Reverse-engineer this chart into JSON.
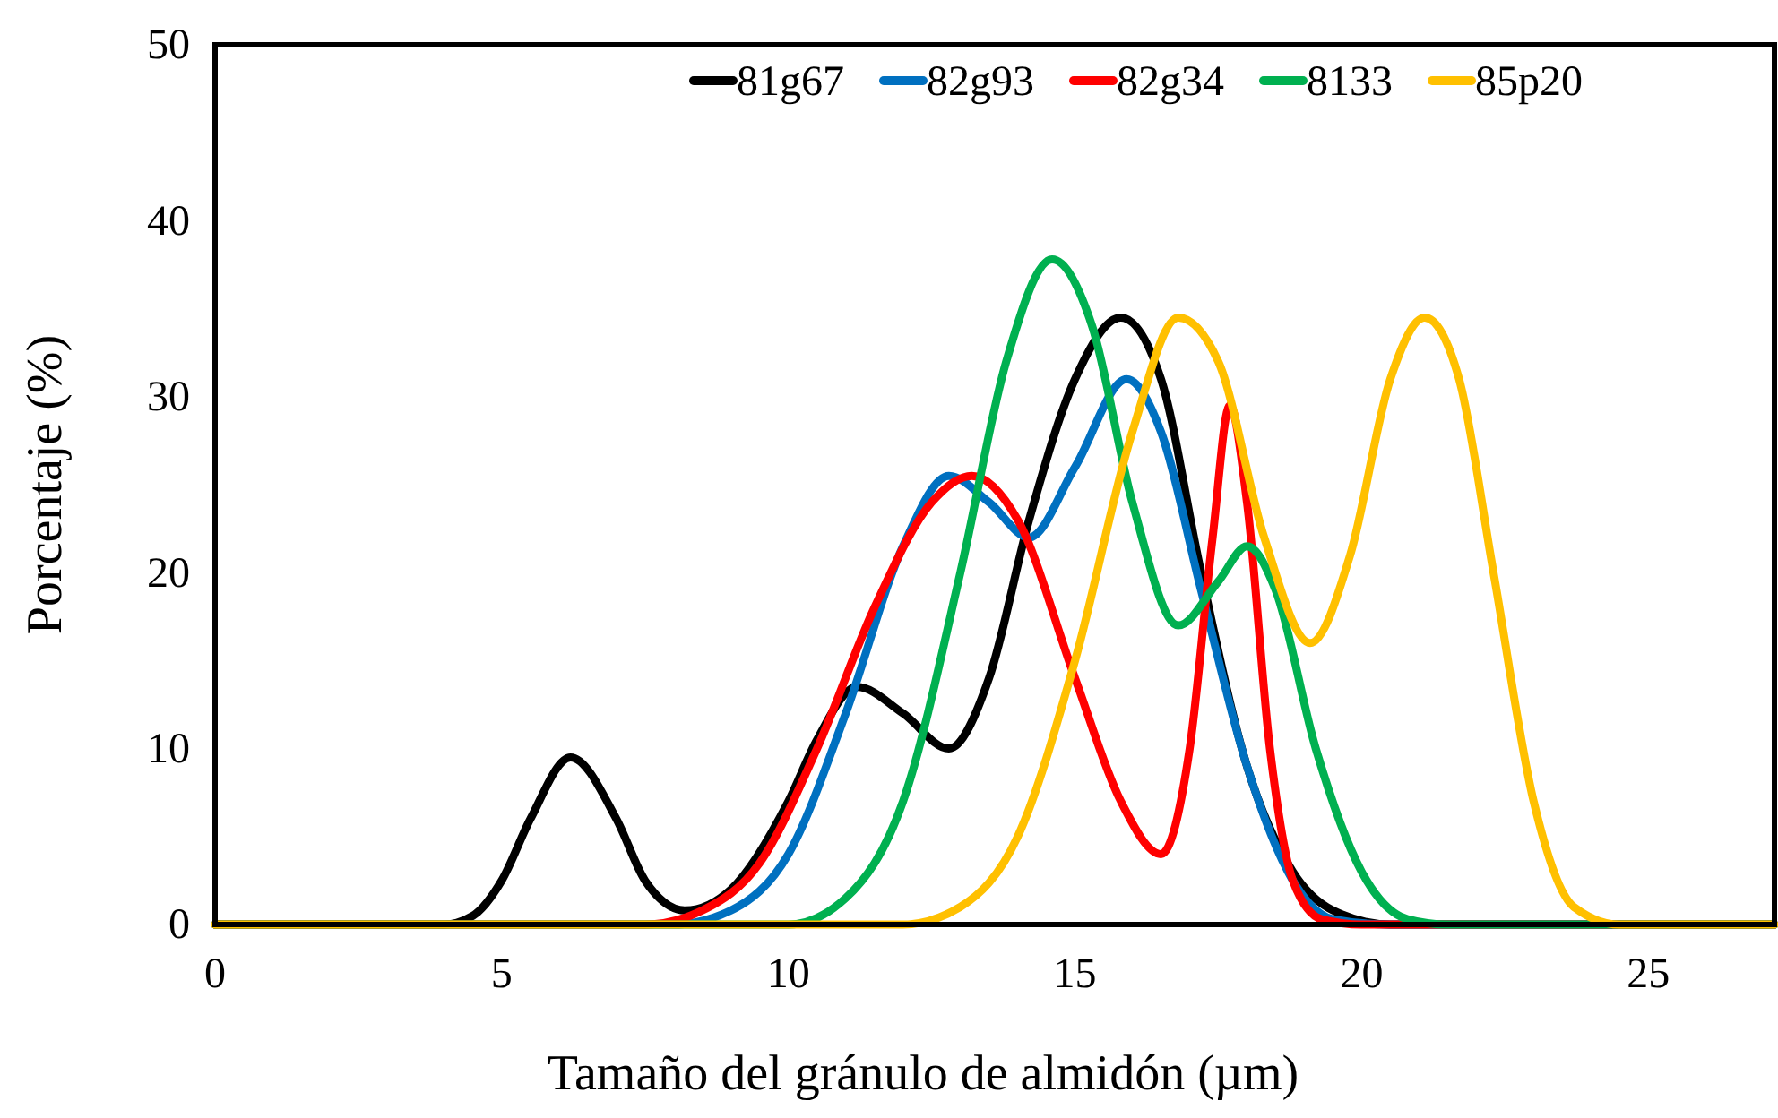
{
  "chart_data": {
    "type": "line",
    "xlabel": "Tamaño del gránulo de almidón (µm)",
    "ylabel": "Porcentaje (%)",
    "xlim": [
      0,
      27.2
    ],
    "xticks": [
      0,
      5,
      10,
      15,
      20,
      25
    ],
    "ylim": [
      0,
      50
    ],
    "yticks": [
      0,
      10,
      20,
      30,
      40,
      50
    ],
    "grid": false,
    "legend": "top",
    "marker": "none",
    "line_style": "solid",
    "series": [
      {
        "name": "81g67",
        "color": "#000000",
        "x": [
          0,
          4,
          4.5,
          5,
          5.5,
          6.2,
          7,
          7.5,
          8.2,
          9,
          10,
          10.5,
          11.2,
          12,
          12.8,
          13.5,
          14.2,
          15,
          15.8,
          16.5,
          17.2,
          18,
          18.8,
          19.5,
          20.5,
          27.2
        ],
        "values": [
          0,
          0,
          0.5,
          2.5,
          6,
          9.5,
          6,
          2.5,
          0.8,
          2,
          7,
          10.5,
          13.5,
          12,
          10,
          14,
          23,
          31,
          34.5,
          31,
          20,
          9,
          3,
          0.8,
          0,
          0
        ]
      },
      {
        "name": "82g93",
        "color": "#0070c0",
        "x": [
          0,
          8,
          9,
          10,
          11,
          12,
          12.8,
          13.5,
          14.2,
          15,
          15.9,
          16.5,
          17.2,
          18,
          18.8,
          19.5,
          20.5,
          27.2
        ],
        "values": [
          0,
          0,
          0.8,
          4,
          12,
          21.5,
          25.5,
          24,
          22,
          26,
          31,
          28,
          19,
          9,
          2.5,
          0.3,
          0,
          0
        ]
      },
      {
        "name": "82g34",
        "color": "#ff0000",
        "x": [
          0,
          7.5,
          8.5,
          9.5,
          10.5,
          11.5,
          12.5,
          13.2,
          14,
          15,
          15.8,
          16.5,
          17,
          17.4,
          17.7,
          18,
          18.4,
          18.8,
          19.3,
          20,
          27.2
        ],
        "values": [
          0,
          0,
          0.8,
          3.5,
          10,
          18,
          24,
          25.5,
          23,
          14,
          7,
          4,
          10,
          22,
          29.5,
          24,
          10,
          2.5,
          0.3,
          0,
          0
        ]
      },
      {
        "name": "8133",
        "color": "#00b050",
        "x": [
          0,
          10,
          11,
          12,
          13,
          13.8,
          14.6,
          15.3,
          16,
          16.8,
          17.5,
          18,
          18.5,
          19.2,
          20,
          20.8,
          21.5,
          27.2
        ],
        "values": [
          0,
          0,
          1.5,
          7,
          20,
          32,
          37.8,
          34,
          24,
          17,
          19.5,
          21.5,
          19,
          10,
          3,
          0.3,
          0,
          0
        ]
      },
      {
        "name": "85p20",
        "color": "#ffc000",
        "x": [
          0,
          12,
          13,
          14,
          15,
          16,
          16.8,
          17.5,
          18.3,
          19.1,
          19.8,
          20.5,
          21.1,
          21.7,
          22.3,
          23,
          23.7,
          24.5,
          27.2
        ],
        "values": [
          0,
          0,
          1,
          5,
          15,
          28,
          34.5,
          32,
          22,
          16,
          21,
          31,
          34.5,
          31,
          20,
          7,
          1,
          0,
          0
        ]
      }
    ]
  }
}
